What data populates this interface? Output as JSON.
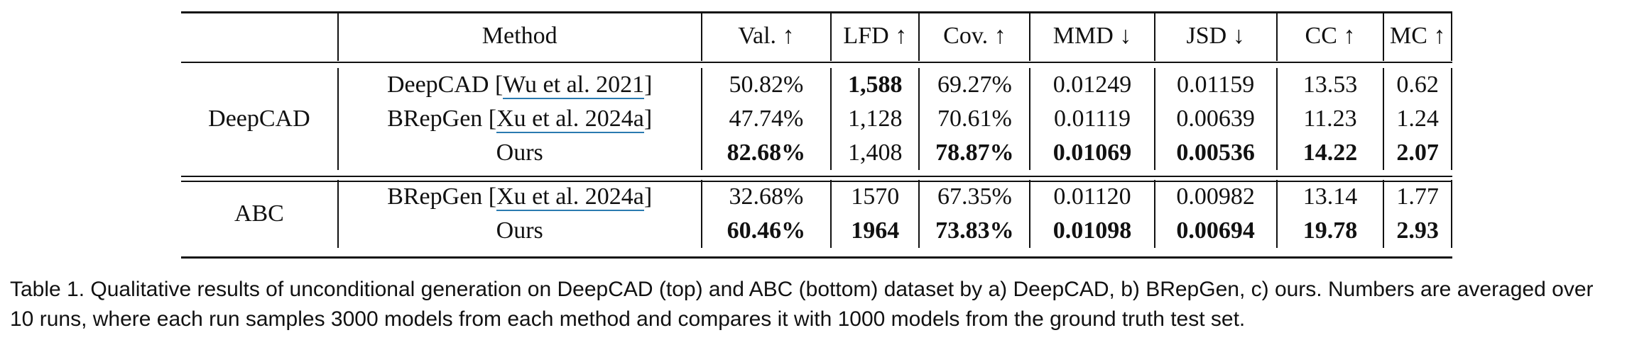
{
  "table": {
    "headers": [
      "",
      "Method",
      "Val. ↑",
      "LFD ↑",
      "Cov. ↑",
      "MMD ↓",
      "JSD ↓",
      "CC ↑",
      "MC ↑"
    ],
    "groups": [
      {
        "name": "DeepCAD",
        "rows": [
          {
            "method": "DeepCAD",
            "cite": "Wu et al. 2021",
            "values": [
              "50.82%",
              "1,588",
              "69.27%",
              "0.01249",
              "0.01159",
              "13.53",
              "0.62"
            ],
            "bold": [
              false,
              true,
              false,
              false,
              false,
              false,
              false
            ]
          },
          {
            "method": "BRepGen",
            "cite": "Xu et al. 2024a",
            "values": [
              "47.74%",
              "1,128",
              "70.61%",
              "0.01119",
              "0.00639",
              "11.23",
              "1.24"
            ],
            "bold": [
              false,
              false,
              false,
              false,
              false,
              false,
              false
            ]
          },
          {
            "method": "Ours",
            "cite": "",
            "values": [
              "82.68%",
              "1,408",
              "78.87%",
              "0.01069",
              "0.00536",
              "14.22",
              "2.07"
            ],
            "bold": [
              true,
              false,
              true,
              true,
              true,
              true,
              true
            ]
          }
        ]
      },
      {
        "name": "ABC",
        "rows": [
          {
            "method": "BRepGen",
            "cite": "Xu et al. 2024a",
            "values": [
              "32.68%",
              "1570",
              "67.35%",
              "0.01120",
              "0.00982",
              "13.14",
              "1.77"
            ],
            "bold": [
              false,
              false,
              false,
              false,
              false,
              false,
              false
            ]
          },
          {
            "method": "Ours",
            "cite": "",
            "values": [
              "60.46%",
              "1964",
              "73.83%",
              "0.01098",
              "0.00694",
              "19.78",
              "2.93"
            ],
            "bold": [
              true,
              true,
              true,
              true,
              true,
              true,
              true
            ]
          }
        ]
      }
    ]
  },
  "caption": "Table 1.  Qualitative results of unconditional generation on DeepCAD (top) and ABC (bottom) dataset by a) DeepCAD, b) BRepGen, c) ours. Numbers are averaged over 10 runs, where each run samples 3000 models from each method and compares it with 1000 models from the ground truth test set."
}
